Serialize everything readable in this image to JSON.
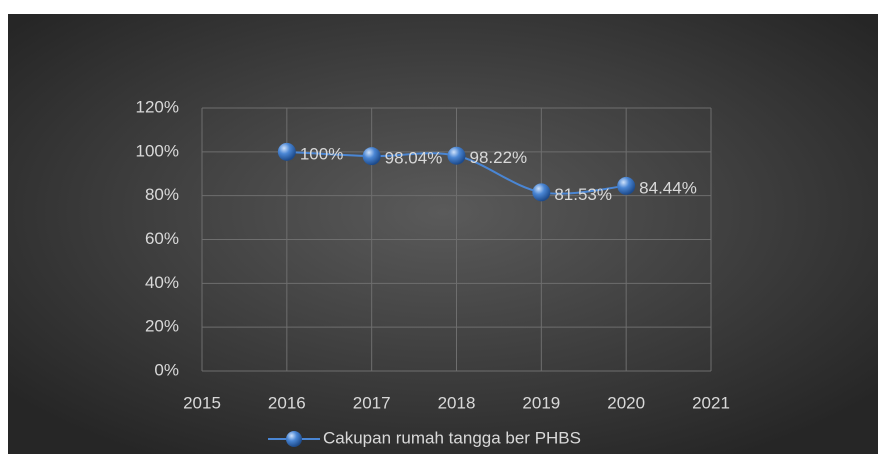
{
  "chart_data": {
    "type": "line",
    "x": [
      2016,
      2017,
      2018,
      2019,
      2020
    ],
    "series": [
      {
        "name": "Cakupan rumah tangga ber PHBS",
        "color": "#4a86d4",
        "values": [
          100,
          98.04,
          98.22,
          81.53,
          84.44
        ],
        "value_labels": [
          "100%",
          "98.04%",
          "98.22%",
          "81.53%",
          "84.44%"
        ]
      }
    ],
    "xlim": [
      2015,
      2021
    ],
    "xticks": [
      2015,
      2016,
      2017,
      2018,
      2019,
      2020,
      2021
    ],
    "ylim": [
      0,
      120
    ],
    "yticks": [
      {
        "value": 0,
        "label": "0%"
      },
      {
        "value": 20,
        "label": "20%"
      },
      {
        "value": 40,
        "label": "40%"
      },
      {
        "value": 60,
        "label": "60%"
      },
      {
        "value": 80,
        "label": "80%"
      },
      {
        "value": 100,
        "label": "100%"
      },
      {
        "value": 120,
        "label": "120%"
      }
    ],
    "grid": true,
    "legend": "bottom"
  }
}
